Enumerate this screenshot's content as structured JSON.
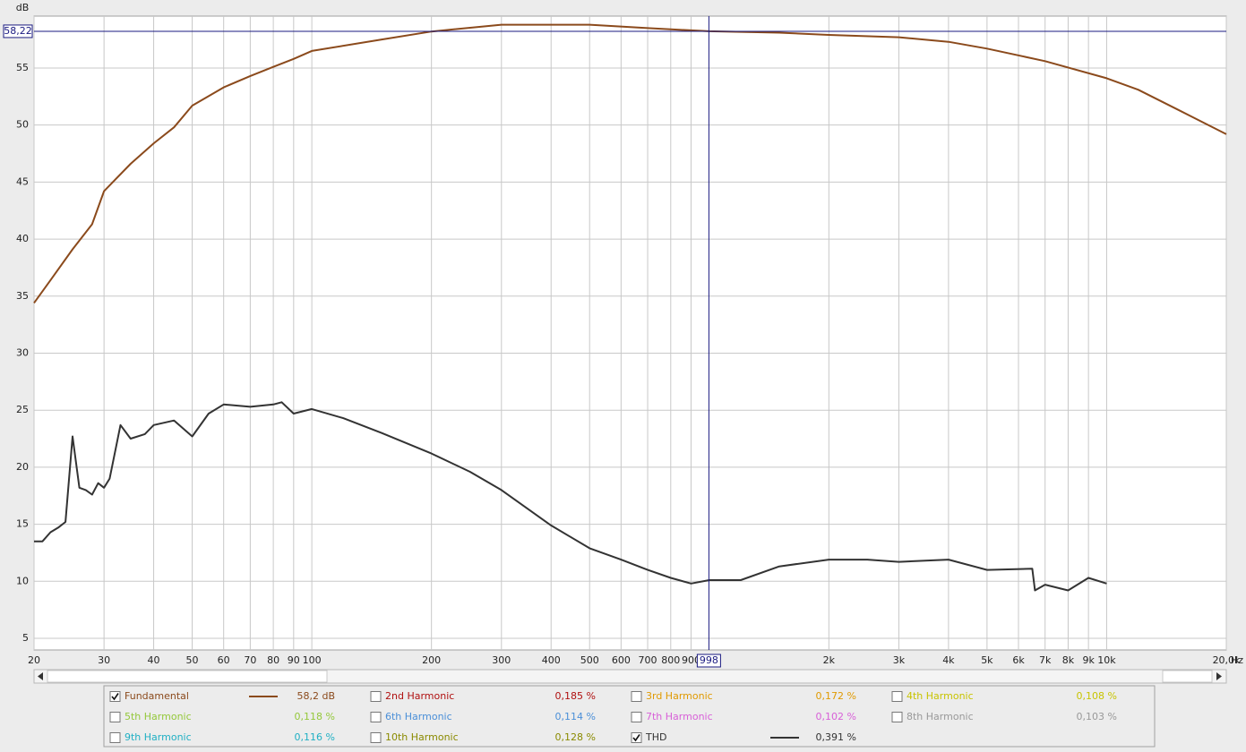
{
  "chart_data": {
    "type": "line",
    "xscale": "log",
    "xlabel": "Hz",
    "ylabel": "dB",
    "xlim": [
      20,
      20000
    ],
    "ylim": [
      3.98,
      59.55
    ],
    "grid": true,
    "xticks": [
      20,
      30,
      40,
      50,
      60,
      70,
      80,
      90,
      100,
      200,
      300,
      400,
      500,
      600,
      700,
      800,
      900,
      {
        "value": 2000,
        "label": "2k"
      },
      {
        "value": 3000,
        "label": "3k"
      },
      {
        "value": 4000,
        "label": "4k"
      },
      {
        "value": 5000,
        "label": "5k"
      },
      {
        "value": 6000,
        "label": "6k"
      },
      {
        "value": 7000,
        "label": "7k"
      },
      {
        "value": 8000,
        "label": "8k"
      },
      {
        "value": 9000,
        "label": "9k"
      },
      {
        "value": 10000,
        "label": "10k"
      },
      {
        "value": 20000,
        "label": "20,0k"
      }
    ],
    "yticks": [
      5,
      10,
      15,
      20,
      25,
      30,
      35,
      40,
      45,
      50,
      55
    ],
    "cursor": {
      "x": 998,
      "y": {
        "value": 58.22,
        "label": "58,22"
      }
    },
    "series": [
      {
        "name": "Fundamental",
        "color": "#8b4a1c",
        "checked": true,
        "reading": "58,2 dB",
        "x": [
          20,
          22,
          25,
          28,
          30,
          35,
          40,
          45,
          50,
          60,
          70,
          80,
          90,
          100,
          150,
          200,
          300,
          400,
          500,
          700,
          998,
          1500,
          2000,
          3000,
          4000,
          5000,
          7000,
          10000,
          12000,
          15000,
          20000
        ],
        "values": [
          34.4,
          36.4,
          39.1,
          41.3,
          44.2,
          46.6,
          48.4,
          49.8,
          51.7,
          53.3,
          54.3,
          55.1,
          55.8,
          56.5,
          57.5,
          58.2,
          58.8,
          58.8,
          58.8,
          58.5,
          58.22,
          58.1,
          57.9,
          57.7,
          57.3,
          56.7,
          55.6,
          54.1,
          53.1,
          51.4,
          49.2
        ]
      },
      {
        "name": "2nd Harmonic",
        "color": "#b01010",
        "checked": false,
        "reading": "0,185 %"
      },
      {
        "name": "3rd Harmonic",
        "color": "#e09a00",
        "checked": false,
        "reading": "0,172 %"
      },
      {
        "name": "4th Harmonic",
        "color": "#c8c400",
        "checked": false,
        "reading": "0,108 %"
      },
      {
        "name": "5th Harmonic",
        "color": "#94c83a",
        "checked": false,
        "reading": "0,118 %"
      },
      {
        "name": "6th Harmonic",
        "color": "#4a8fd8",
        "checked": false,
        "reading": "0,114 %"
      },
      {
        "name": "7th Harmonic",
        "color": "#d860d8",
        "checked": false,
        "reading": "0,102 %"
      },
      {
        "name": "8th Harmonic",
        "color": "#999999",
        "checked": false,
        "reading": "0,103 %"
      },
      {
        "name": "9th Harmonic",
        "color": "#20b0c4",
        "checked": false,
        "reading": "0,116 %"
      },
      {
        "name": "10th Harmonic",
        "color": "#8a8a00",
        "checked": false,
        "reading": "0,128 %"
      },
      {
        "name": "THD",
        "color": "#333333",
        "checked": true,
        "reading": "0,391 %",
        "x": [
          20,
          21,
          22,
          23,
          24,
          25,
          26,
          27,
          28,
          29,
          30,
          31,
          33,
          35,
          38,
          40,
          45,
          50,
          55,
          60,
          70,
          80,
          84,
          90,
          100,
          120,
          150,
          200,
          250,
          300,
          400,
          500,
          600,
          700,
          800,
          900,
          1000,
          1200,
          1500,
          2000,
          2500,
          3000,
          4000,
          5000,
          6500,
          6600,
          7000,
          8000,
          9000,
          10000
        ],
        "values": [
          13.5,
          13.5,
          14.3,
          14.7,
          15.2,
          22.7,
          18.2,
          18.0,
          17.6,
          18.6,
          18.2,
          19.0,
          23.7,
          22.5,
          22.9,
          23.7,
          24.1,
          22.7,
          24.7,
          25.5,
          25.3,
          25.5,
          25.7,
          24.7,
          25.1,
          24.3,
          23.0,
          21.2,
          19.6,
          18.0,
          14.9,
          12.9,
          11.9,
          11.0,
          10.3,
          9.8,
          10.1,
          10.1,
          11.3,
          11.9,
          11.9,
          11.7,
          11.9,
          11.0,
          11.1,
          9.2,
          9.7,
          9.2,
          10.3,
          9.8
        ]
      }
    ]
  }
}
